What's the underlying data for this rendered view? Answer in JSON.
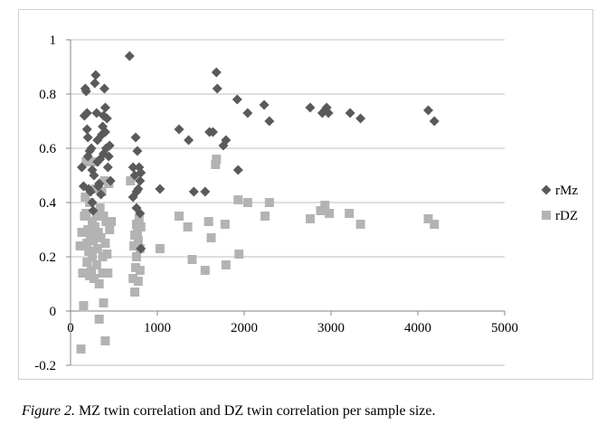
{
  "caption": {
    "label": "Figure 2.",
    "text": " MZ twin correlation and DZ twin correlation per sample size."
  },
  "chart_data": {
    "type": "scatter",
    "xlim": [
      0,
      5000
    ],
    "ylim": [
      -0.2,
      1
    ],
    "x_ticks": [
      0,
      1000,
      2000,
      3000,
      4000,
      5000
    ],
    "y_ticks": [
      -0.2,
      0,
      0.2,
      0.4,
      0.6,
      0.8,
      1
    ],
    "y_tick_labels": [
      "-0.2",
      "0",
      "0.2",
      "0.4",
      "0.6",
      "0.8",
      "1"
    ],
    "grid": "horizontal",
    "legend_position": "right",
    "series": [
      {
        "name": "rMz",
        "marker": "diamond",
        "color": "#5a5a5a",
        "points": [
          [
            130,
            0.53
          ],
          [
            150,
            0.46
          ],
          [
            160,
            0.72
          ],
          [
            170,
            0.82
          ],
          [
            180,
            0.81
          ],
          [
            190,
            0.73
          ],
          [
            190,
            0.67
          ],
          [
            200,
            0.64
          ],
          [
            200,
            0.57
          ],
          [
            210,
            0.45
          ],
          [
            220,
            0.59
          ],
          [
            230,
            0.44
          ],
          [
            240,
            0.6
          ],
          [
            250,
            0.52
          ],
          [
            250,
            0.4
          ],
          [
            260,
            0.37
          ],
          [
            270,
            0.5
          ],
          [
            280,
            0.84
          ],
          [
            290,
            0.87
          ],
          [
            300,
            0.73
          ],
          [
            310,
            0.55
          ],
          [
            310,
            0.63
          ],
          [
            320,
            0.46
          ],
          [
            330,
            0.47
          ],
          [
            340,
            0.56
          ],
          [
            350,
            0.43
          ],
          [
            360,
            0.65
          ],
          [
            370,
            0.68
          ],
          [
            380,
            0.58
          ],
          [
            380,
            0.72
          ],
          [
            390,
            0.82
          ],
          [
            400,
            0.75
          ],
          [
            400,
            0.66
          ],
          [
            410,
            0.6
          ],
          [
            420,
            0.71
          ],
          [
            430,
            0.53
          ],
          [
            440,
            0.57
          ],
          [
            450,
            0.61
          ],
          [
            460,
            0.48
          ],
          [
            680,
            0.94
          ],
          [
            720,
            0.53
          ],
          [
            720,
            0.42
          ],
          [
            740,
            0.5
          ],
          [
            750,
            0.64
          ],
          [
            760,
            0.44
          ],
          [
            760,
            0.38
          ],
          [
            770,
            0.59
          ],
          [
            780,
            0.45
          ],
          [
            790,
            0.53
          ],
          [
            800,
            0.48
          ],
          [
            800,
            0.36
          ],
          [
            810,
            0.51
          ],
          [
            810,
            0.23
          ],
          [
            1030,
            0.45
          ],
          [
            1250,
            0.67
          ],
          [
            1360,
            0.63
          ],
          [
            1420,
            0.44
          ],
          [
            1550,
            0.44
          ],
          [
            1600,
            0.66
          ],
          [
            1640,
            0.66
          ],
          [
            1680,
            0.88
          ],
          [
            1690,
            0.82
          ],
          [
            1760,
            0.61
          ],
          [
            1790,
            0.63
          ],
          [
            1920,
            0.78
          ],
          [
            1930,
            0.52
          ],
          [
            2040,
            0.73
          ],
          [
            2230,
            0.76
          ],
          [
            2290,
            0.7
          ],
          [
            2760,
            0.75
          ],
          [
            2900,
            0.73
          ],
          [
            2930,
            0.74
          ],
          [
            2950,
            0.75
          ],
          [
            2970,
            0.73
          ],
          [
            3220,
            0.73
          ],
          [
            3340,
            0.71
          ],
          [
            4120,
            0.74
          ],
          [
            4190,
            0.7
          ]
        ]
      },
      {
        "name": "rDZ",
        "marker": "square",
        "color": "#b3b3b3",
        "points": [
          [
            110,
            0.24
          ],
          [
            120,
            -0.14
          ],
          [
            130,
            0.29
          ],
          [
            140,
            0.14
          ],
          [
            150,
            0.02
          ],
          [
            160,
            0.35
          ],
          [
            170,
            0.42
          ],
          [
            180,
            0.55
          ],
          [
            180,
            0.36
          ],
          [
            190,
            0.25
          ],
          [
            190,
            0.18
          ],
          [
            200,
            0.3
          ],
          [
            210,
            0.22
          ],
          [
            220,
            0.13
          ],
          [
            220,
            0.4
          ],
          [
            230,
            0.28
          ],
          [
            240,
            0.15
          ],
          [
            250,
            0.33
          ],
          [
            250,
            0.2
          ],
          [
            260,
            0.26
          ],
          [
            270,
            0.12
          ],
          [
            280,
            0.55
          ],
          [
            280,
            0.31
          ],
          [
            290,
            0.45
          ],
          [
            300,
            0.17
          ],
          [
            300,
            0.35
          ],
          [
            310,
            0.23
          ],
          [
            320,
            0.29
          ],
          [
            330,
            0.1
          ],
          [
            330,
            -0.03
          ],
          [
            340,
            0.38
          ],
          [
            350,
            0.27
          ],
          [
            360,
            0.44
          ],
          [
            370,
            0.14
          ],
          [
            370,
            0.2
          ],
          [
            380,
            0.03
          ],
          [
            380,
            0.35
          ],
          [
            390,
            0.48
          ],
          [
            400,
            -0.11
          ],
          [
            400,
            0.25
          ],
          [
            410,
            0.33
          ],
          [
            420,
            0.21
          ],
          [
            430,
            0.14
          ],
          [
            440,
            0.47
          ],
          [
            450,
            0.3
          ],
          [
            470,
            0.33
          ],
          [
            690,
            0.48
          ],
          [
            720,
            0.12
          ],
          [
            730,
            0.24
          ],
          [
            740,
            0.07
          ],
          [
            740,
            0.28
          ],
          [
            750,
            0.16
          ],
          [
            760,
            0.32
          ],
          [
            760,
            0.2
          ],
          [
            770,
            0.29
          ],
          [
            780,
            0.11
          ],
          [
            780,
            0.26
          ],
          [
            790,
            0.34
          ],
          [
            800,
            0.15
          ],
          [
            800,
            0.23
          ],
          [
            810,
            0.31
          ],
          [
            1030,
            0.23
          ],
          [
            1250,
            0.35
          ],
          [
            1350,
            0.31
          ],
          [
            1400,
            0.19
          ],
          [
            1550,
            0.15
          ],
          [
            1590,
            0.33
          ],
          [
            1620,
            0.27
          ],
          [
            1670,
            0.54
          ],
          [
            1680,
            0.56
          ],
          [
            1780,
            0.32
          ],
          [
            1790,
            0.17
          ],
          [
            1930,
            0.41
          ],
          [
            1940,
            0.21
          ],
          [
            2040,
            0.4
          ],
          [
            2240,
            0.35
          ],
          [
            2290,
            0.4
          ],
          [
            2760,
            0.34
          ],
          [
            2880,
            0.37
          ],
          [
            2930,
            0.39
          ],
          [
            2980,
            0.36
          ],
          [
            3210,
            0.36
          ],
          [
            3340,
            0.32
          ],
          [
            4120,
            0.34
          ],
          [
            4190,
            0.32
          ]
        ]
      }
    ]
  }
}
